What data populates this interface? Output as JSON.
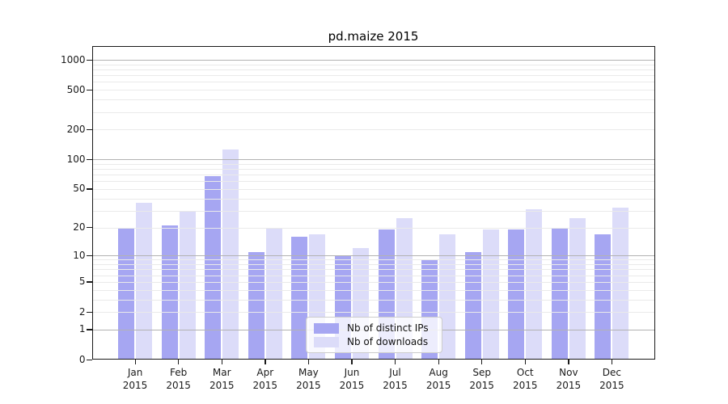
{
  "chart_data": {
    "type": "bar",
    "title": "pd.maize 2015",
    "categories": [
      "Jan 2015",
      "Feb 2015",
      "Mar 2015",
      "Apr 2015",
      "May 2015",
      "Jun 2015",
      "Jul 2015",
      "Aug 2015",
      "Sep 2015",
      "Oct 2015",
      "Nov 2015",
      "Dec 2015"
    ],
    "series": [
      {
        "name": "Nb of distinct IPs",
        "color": "#a6a6f2",
        "values": [
          20,
          21,
          67,
          11,
          16,
          10,
          19,
          9,
          11,
          19,
          20,
          17
        ]
      },
      {
        "name": "Nb of downloads",
        "color": "#dcdcf9",
        "values": [
          36,
          29,
          125,
          20,
          17,
          12,
          25,
          17,
          19,
          31,
          25,
          32
        ]
      }
    ],
    "xlabel": "",
    "ylabel": "",
    "y_axis": {
      "scale": "log1p",
      "min": 0,
      "max": 1000,
      "tick_values": [
        0,
        1,
        2,
        5,
        10,
        20,
        50,
        100,
        200,
        500,
        1000
      ],
      "tick_labels": [
        "0",
        "1",
        "2",
        "5",
        "10",
        "20",
        "50",
        "100",
        "200",
        "500",
        "1000"
      ]
    },
    "grid": {
      "major_at": [
        1,
        10,
        100,
        1000
      ],
      "minor_multipliers": [
        2,
        3,
        4,
        5,
        6,
        7,
        8,
        9
      ],
      "minor_decades": [
        1,
        10,
        100
      ]
    },
    "legend_position": "bottom-center"
  },
  "colors": {
    "grid_major": "#b2b2b2",
    "grid_minor": "#eaeaea",
    "frame": "#1a1a1a",
    "tick": "#1a1a1a",
    "legend_border": "#cccccc",
    "legend_bg": "#ffffff"
  }
}
